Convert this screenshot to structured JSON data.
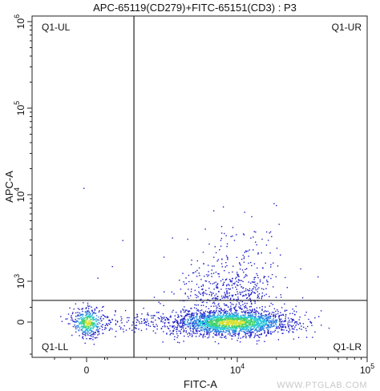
{
  "chart_data": {
    "type": "scatter",
    "title": "APC-65119(CD279)+FITC-65151(CD3) : P3",
    "xlabel": "FITC-A",
    "ylabel": "APC-A",
    "x_ticks": [
      {
        "base": "0",
        "exp": ""
      },
      {
        "base": "10",
        "exp": "4"
      },
      {
        "base": "10",
        "exp": "5"
      }
    ],
    "y_ticks": [
      {
        "base": "0",
        "exp": ""
      },
      {
        "base": "10",
        "exp": "3"
      },
      {
        "base": "10",
        "exp": "4"
      },
      {
        "base": "10",
        "exp": "5"
      },
      {
        "base": "10",
        "exp": "6"
      }
    ],
    "quadrant_gates": {
      "x": 1600,
      "y": 600
    },
    "quadrants": [
      "Q1-UL",
      "Q1-UR",
      "Q1-LL",
      "Q1-LR"
    ],
    "scale": "biexponential",
    "populations": [
      {
        "label": "CD3+ CD279- (main cluster)",
        "center_x": 9000,
        "center_y": 0,
        "weight": 0.72
      },
      {
        "label": "CD3+ CD279+ (upper smear)",
        "center_x": 11000,
        "center_y": 1500,
        "weight": 0.13
      },
      {
        "label": "CD3- cluster",
        "center_x": 20,
        "center_y": 0,
        "weight": 0.12
      }
    ],
    "density_colors": [
      "#1f1fc8",
      "#2a7fe0",
      "#25c8d8",
      "#3fd06a",
      "#d8e030"
    ]
  },
  "watermark": "WWW.PTGLAB.COM"
}
